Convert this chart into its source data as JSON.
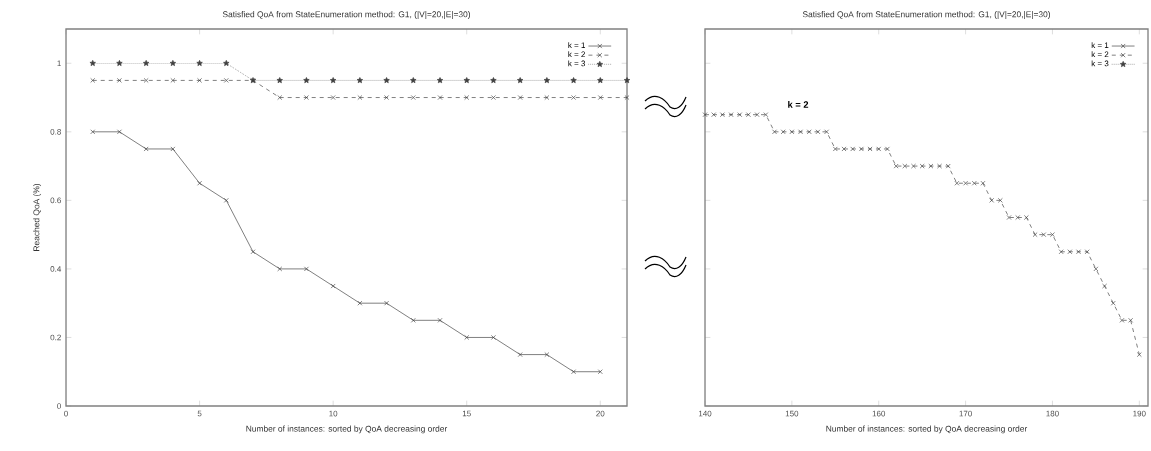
{
  "chart_data": [
    {
      "type": "line",
      "title": "Satisfied QoA from StateEnumeration method: G1, (|V|=20,|E|=30)",
      "xlabel": "Number of instances: sorted by QoA decreasing order",
      "ylabel": "Reached QoA (%)",
      "xlim": [
        0,
        21
      ],
      "ylim": [
        0,
        1.1
      ],
      "xticks": [
        0,
        5,
        10,
        15,
        20
      ],
      "yticks": [
        0,
        0.2,
        0.4,
        0.6,
        0.8,
        1
      ],
      "legend": "top right",
      "grid": false,
      "series": [
        {
          "name": "k = 1",
          "color": "#404040",
          "marker": "cross",
          "line_style": "solid",
          "x": [
            1,
            2,
            3,
            4,
            5,
            6,
            7,
            8,
            9,
            10,
            11,
            12,
            13,
            14,
            15,
            16,
            17,
            18,
            19,
            20
          ],
          "values": [
            0.8,
            0.8,
            0.75,
            0.75,
            0.65,
            0.6,
            0.45,
            0.4,
            0.4,
            0.35,
            0.3,
            0.3,
            0.25,
            0.25,
            0.2,
            0.2,
            0.15,
            0.15,
            0.1,
            0.1
          ]
        },
        {
          "name": "k = 2",
          "color": "#404040",
          "marker": "cross",
          "line_style": "dashed",
          "x": [
            1,
            2,
            3,
            4,
            5,
            6,
            7,
            8,
            9,
            10,
            11,
            12,
            13,
            14,
            15,
            16,
            17,
            18,
            19,
            20,
            21
          ],
          "values": [
            0.95,
            0.95,
            0.95,
            0.95,
            0.95,
            0.95,
            0.95,
            0.9,
            0.9,
            0.9,
            0.9,
            0.9,
            0.9,
            0.9,
            0.9,
            0.9,
            0.9,
            0.9,
            0.9,
            0.9,
            0.9
          ]
        },
        {
          "name": "k = 3",
          "color": "#404040",
          "marker": "star",
          "line_style": "dotted",
          "x": [
            1,
            2,
            3,
            4,
            5,
            6,
            7,
            8,
            9,
            10,
            11,
            12,
            13,
            14,
            15,
            16,
            17,
            18,
            19,
            20,
            21
          ],
          "values": [
            1,
            1,
            1,
            1,
            1,
            1,
            0.95,
            0.95,
            0.95,
            0.95,
            0.95,
            0.95,
            0.95,
            0.95,
            0.95,
            0.95,
            0.95,
            0.95,
            0.95,
            0.95,
            0.95
          ]
        }
      ]
    },
    {
      "type": "line",
      "title": "Satisfied QoA from StateEnumeration method: G1, (|V|=20,|E|=30)",
      "xlabel": "Number of instances: sorted by QoA decreasing order",
      "xlim": [
        140,
        191
      ],
      "ylim": [
        0,
        1.1
      ],
      "xticks": [
        140,
        150,
        160,
        170,
        180,
        190
      ],
      "yticks": [
        0,
        0.2,
        0.4,
        0.6,
        0.8,
        1
      ],
      "tick_labels": "x",
      "legend": "top right",
      "grid": false,
      "annotations": [
        "k = 2"
      ],
      "series": [
        {
          "name": "k = 1",
          "color": "#404040",
          "marker": "cross",
          "line_style": "solid"
        },
        {
          "name": "k = 2",
          "color": "#404040",
          "marker": "cross",
          "line_style": "dashed",
          "x": [
            140,
            141,
            142,
            143,
            144,
            145,
            146,
            147,
            148,
            149,
            150,
            151,
            152,
            153,
            154,
            155,
            156,
            157,
            158,
            159,
            160,
            161,
            162,
            163,
            164,
            165,
            166,
            167,
            168,
            169,
            170,
            171,
            172,
            173,
            174,
            175,
            176,
            177,
            178,
            179,
            180,
            181,
            182,
            183,
            184,
            185,
            186,
            187,
            188,
            189,
            190
          ],
          "values": [
            0.85,
            0.85,
            0.85,
            0.85,
            0.85,
            0.85,
            0.85,
            0.85,
            0.8,
            0.8,
            0.8,
            0.8,
            0.8,
            0.8,
            0.8,
            0.75,
            0.75,
            0.75,
            0.75,
            0.75,
            0.75,
            0.75,
            0.7,
            0.7,
            0.7,
            0.7,
            0.7,
            0.7,
            0.7,
            0.65,
            0.65,
            0.65,
            0.65,
            0.6,
            0.6,
            0.55,
            0.55,
            0.55,
            0.5,
            0.5,
            0.5,
            0.45,
            0.45,
            0.45,
            0.45,
            0.4,
            0.35,
            0.3,
            0.25,
            0.25,
            0.15
          ]
        },
        {
          "name": "k = 3",
          "color": "#404040",
          "marker": "star",
          "line_style": "dotted"
        }
      ]
    }
  ]
}
